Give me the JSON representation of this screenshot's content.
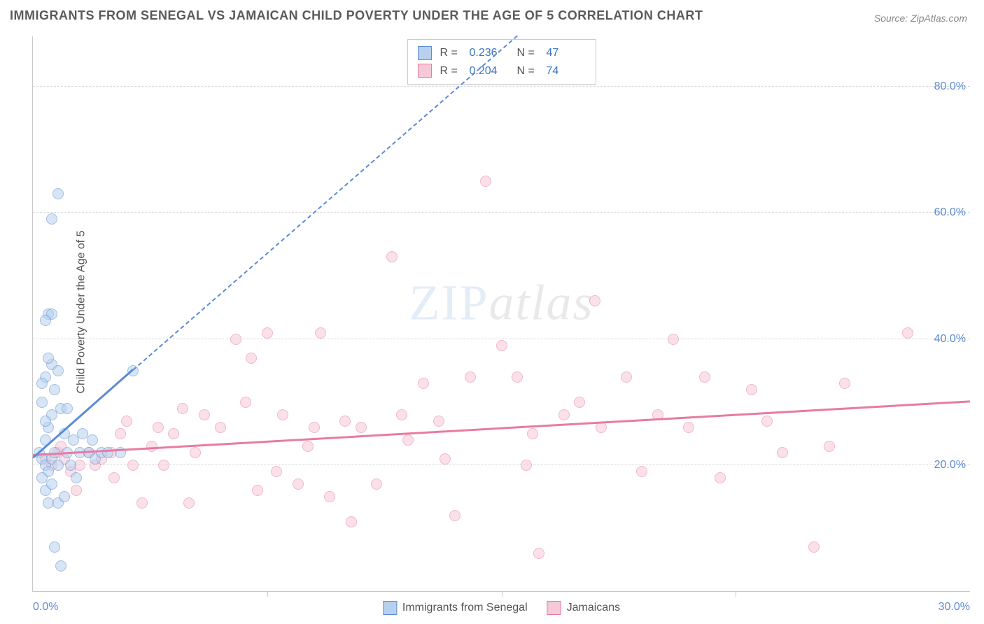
{
  "title": "IMMIGRANTS FROM SENEGAL VS JAMAICAN CHILD POVERTY UNDER THE AGE OF 5 CORRELATION CHART",
  "source": "Source: ZipAtlas.com",
  "ylabel": "Child Poverty Under the Age of 5",
  "watermark": {
    "part1": "ZIP",
    "part2": "atlas"
  },
  "chart": {
    "type": "scatter",
    "xlim": [
      0,
      30
    ],
    "ylim": [
      0,
      88
    ],
    "xticks": [
      0.0,
      30.0
    ],
    "xtick_labels": [
      "0.0%",
      "30.0%"
    ],
    "xtick_minor": [
      7.5,
      15.0,
      22.5
    ],
    "yticks": [
      20.0,
      40.0,
      60.0,
      80.0
    ],
    "ytick_labels": [
      "20.0%",
      "40.0%",
      "60.0%",
      "80.0%"
    ],
    "background_color": "#ffffff",
    "grid_color": "#d8d8d8",
    "axis_color": "#c9c9c9",
    "tick_label_color": "#5b8bd4",
    "point_radius": 8,
    "point_opacity": 0.55,
    "series": [
      {
        "name": "Immigrants from Senegal",
        "color_stroke": "#5b8bd4",
        "color_fill": "#b7d0ee",
        "R": "0.236",
        "N": "47",
        "trend": {
          "x1": 0,
          "y1": 21,
          "x2": 3.2,
          "y2": 35,
          "dash_to_x": 15.5,
          "dash_to_y": 88
        },
        "points": [
          [
            0.2,
            22
          ],
          [
            0.3,
            21
          ],
          [
            0.4,
            20
          ],
          [
            0.5,
            19
          ],
          [
            0.6,
            21
          ],
          [
            0.4,
            24
          ],
          [
            0.7,
            22
          ],
          [
            0.8,
            20
          ],
          [
            0.5,
            26
          ],
          [
            0.6,
            28
          ],
          [
            0.3,
            30
          ],
          [
            0.7,
            32
          ],
          [
            0.4,
            34
          ],
          [
            0.6,
            36
          ],
          [
            0.5,
            37
          ],
          [
            0.8,
            35
          ],
          [
            0.3,
            33
          ],
          [
            0.9,
            29
          ],
          [
            1.0,
            25
          ],
          [
            1.1,
            22
          ],
          [
            1.2,
            20
          ],
          [
            1.3,
            24
          ],
          [
            1.5,
            22
          ],
          [
            1.6,
            25
          ],
          [
            1.8,
            22
          ],
          [
            2.0,
            21
          ],
          [
            2.2,
            22
          ],
          [
            2.8,
            22
          ],
          [
            3.2,
            35
          ],
          [
            0.5,
            44
          ],
          [
            0.6,
            44
          ],
          [
            0.4,
            43
          ],
          [
            0.6,
            59
          ],
          [
            0.8,
            63
          ],
          [
            0.4,
            16
          ],
          [
            0.5,
            14
          ],
          [
            0.8,
            14
          ],
          [
            0.6,
            17
          ],
          [
            1.0,
            15
          ],
          [
            1.4,
            18
          ],
          [
            0.7,
            7
          ],
          [
            0.9,
            4
          ],
          [
            0.3,
            18
          ],
          [
            0.4,
            27
          ],
          [
            1.9,
            24
          ],
          [
            2.4,
            22
          ],
          [
            1.1,
            29
          ]
        ]
      },
      {
        "name": "Jamaicans",
        "color_stroke": "#e87ba2",
        "color_fill": "#f6c9d8",
        "R": "0.204",
        "N": "74",
        "trend": {
          "x1": 0,
          "y1": 21.5,
          "x2": 30,
          "y2": 30
        },
        "points": [
          [
            0.4,
            21
          ],
          [
            0.6,
            20
          ],
          [
            0.8,
            22
          ],
          [
            1.0,
            21
          ],
          [
            1.2,
            19
          ],
          [
            1.5,
            20
          ],
          [
            1.8,
            22
          ],
          [
            2.0,
            20
          ],
          [
            2.2,
            21
          ],
          [
            2.5,
            22
          ],
          [
            2.8,
            25
          ],
          [
            3.0,
            27
          ],
          [
            3.2,
            20
          ],
          [
            3.5,
            14
          ],
          [
            4.0,
            26
          ],
          [
            4.2,
            20
          ],
          [
            4.5,
            25
          ],
          [
            5.0,
            14
          ],
          [
            5.2,
            22
          ],
          [
            5.5,
            28
          ],
          [
            6.0,
            26
          ],
          [
            6.5,
            40
          ],
          [
            7.0,
            37
          ],
          [
            7.2,
            16
          ],
          [
            7.5,
            41
          ],
          [
            8.0,
            28
          ],
          [
            8.5,
            17
          ],
          [
            9.0,
            26
          ],
          [
            9.2,
            41
          ],
          [
            9.5,
            15
          ],
          [
            10.0,
            27
          ],
          [
            10.2,
            11
          ],
          [
            10.5,
            26
          ],
          [
            11.0,
            17
          ],
          [
            11.5,
            53
          ],
          [
            12.0,
            24
          ],
          [
            12.5,
            33
          ],
          [
            13.0,
            27
          ],
          [
            13.5,
            12
          ],
          [
            14.0,
            34
          ],
          [
            14.5,
            65
          ],
          [
            15.0,
            39
          ],
          [
            15.5,
            34
          ],
          [
            16.0,
            25
          ],
          [
            16.2,
            6
          ],
          [
            17.0,
            28
          ],
          [
            18.0,
            46
          ],
          [
            18.2,
            26
          ],
          [
            19.0,
            34
          ],
          [
            19.5,
            19
          ],
          [
            20.0,
            28
          ],
          [
            20.5,
            40
          ],
          [
            21.0,
            26
          ],
          [
            21.5,
            34
          ],
          [
            22.0,
            18
          ],
          [
            23.0,
            32
          ],
          [
            23.5,
            27
          ],
          [
            24.0,
            22
          ],
          [
            25.0,
            7
          ],
          [
            25.5,
            23
          ],
          [
            26.0,
            33
          ],
          [
            28.0,
            41
          ],
          [
            2.6,
            18
          ],
          [
            3.8,
            23
          ],
          [
            6.8,
            30
          ],
          [
            8.8,
            23
          ],
          [
            11.8,
            28
          ],
          [
            13.2,
            21
          ],
          [
            15.8,
            20
          ],
          [
            17.5,
            30
          ],
          [
            0.9,
            23
          ],
          [
            1.4,
            16
          ],
          [
            4.8,
            29
          ],
          [
            7.8,
            19
          ]
        ]
      }
    ]
  },
  "legend_bottom": [
    {
      "label": "Immigrants from Senegal",
      "stroke": "#5b8bd4",
      "fill": "#b7d0ee"
    },
    {
      "label": "Jamaicans",
      "stroke": "#e87ba2",
      "fill": "#f6c9d8"
    }
  ]
}
